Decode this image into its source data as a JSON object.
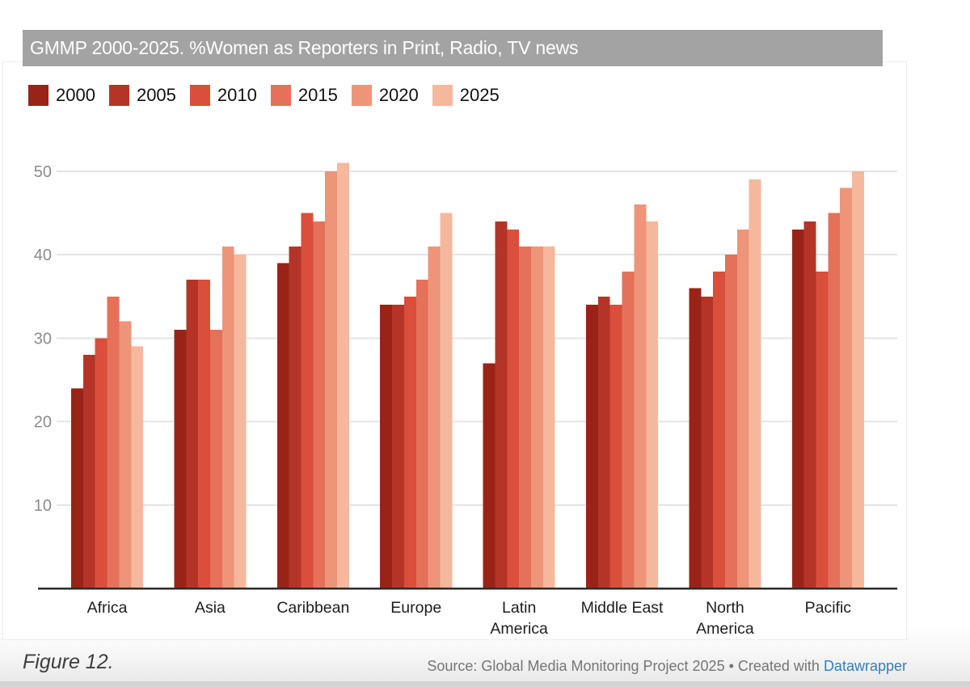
{
  "banner": {
    "title": "GMMP 2000-2025. %Women as Reporters in Print, Radio, TV news",
    "background": "#a3a3a3"
  },
  "chart_data": {
    "type": "bar",
    "title": "GMMP 2000-2025. %Women as Reporters in Print, Radio, TV news",
    "categories": [
      "Africa",
      "Asia",
      "Caribbean",
      "Europe",
      "Latin America",
      "Middle East",
      "North America",
      "Pacific"
    ],
    "category_label_lines": [
      [
        "Africa"
      ],
      [
        "Asia"
      ],
      [
        "Caribbean"
      ],
      [
        "Europe"
      ],
      [
        "Latin",
        "America"
      ],
      [
        "Middle East"
      ],
      [
        "North",
        "America"
      ],
      [
        "Pacific"
      ]
    ],
    "series": [
      {
        "name": "2000",
        "color": "#9a2318",
        "values": [
          24,
          31,
          39,
          34,
          27,
          34,
          36,
          43
        ]
      },
      {
        "name": "2005",
        "color": "#b43528",
        "values": [
          28,
          37,
          41,
          34,
          44,
          35,
          35,
          44
        ]
      },
      {
        "name": "2010",
        "color": "#d94f3b",
        "values": [
          30,
          37,
          45,
          35,
          43,
          34,
          38,
          38
        ]
      },
      {
        "name": "2015",
        "color": "#e5715a",
        "values": [
          35,
          31,
          44,
          37,
          41,
          38,
          40,
          45
        ]
      },
      {
        "name": "2020",
        "color": "#ee9479",
        "values": [
          32,
          41,
          50,
          41,
          41,
          46,
          43,
          48
        ]
      },
      {
        "name": "2025",
        "color": "#f5b89d",
        "values": [
          29,
          40,
          51,
          45,
          41,
          44,
          49,
          50
        ]
      }
    ],
    "xlabel": "",
    "ylabel": "",
    "y_ticks": [
      10,
      20,
      30,
      40,
      50
    ],
    "ylim": [
      0,
      55
    ],
    "grid": true,
    "legend_position": "top-left",
    "unit": "%"
  },
  "footer": {
    "caption": "Figure 12.",
    "source_text": "Source: Global Media Monitoring Project 2025 • Created with ",
    "link_label": "Datawrapper",
    "link_color": "#3080c0"
  }
}
